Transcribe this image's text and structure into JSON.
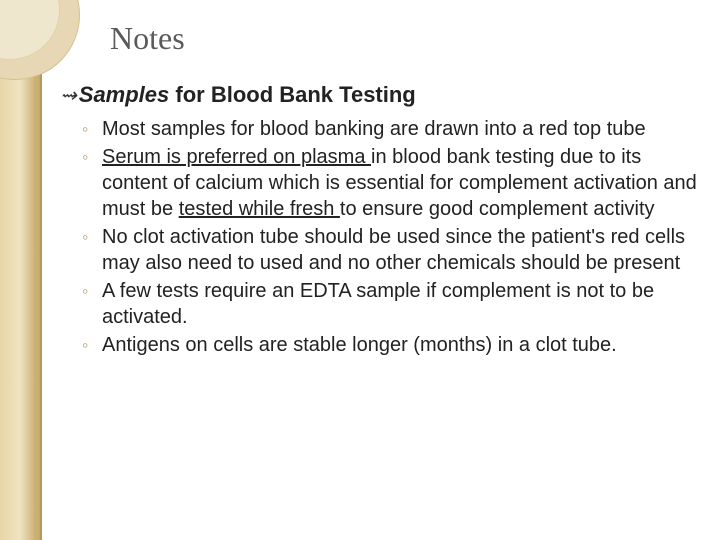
{
  "colors": {
    "background": "#ffffff",
    "border_gradient_start": "#e8d5a8",
    "border_gradient_end": "#c4a968",
    "title_color": "#5a5a5a",
    "body_text_color": "#222222",
    "sub_bullet_color": "#b8a068"
  },
  "typography": {
    "title_fontsize": 32,
    "main_bullet_fontsize": 22,
    "sub_bullet_fontsize": 20,
    "title_font": "Georgia",
    "body_font": "Arial"
  },
  "title": "Notes",
  "main_bullet": {
    "marker": "∶",
    "italic_part": "Samples",
    "bold_part": " for Blood Bank Testing"
  },
  "sub_bullets": {
    "marker": "◦",
    "items": [
      {
        "text": "Most samples for blood banking are drawn into a red top tube"
      },
      {
        "text_before": "",
        "underline1": "Serum is preferred on plasma ",
        "text_mid": "in blood bank testing due to its content of calcium which is essential for complement activation and must be ",
        "underline2": "tested while fresh ",
        "text_after": "to ensure good complement activity"
      },
      {
        "text": "No clot activation tube should be used since the patient's red cells may also need to used and no other chemicals should be present"
      },
      {
        "text": "A few tests require an EDTA sample if complement is not to be activated."
      },
      {
        "text": "Antigens on cells are stable longer (months) in a clot tube."
      }
    ]
  }
}
